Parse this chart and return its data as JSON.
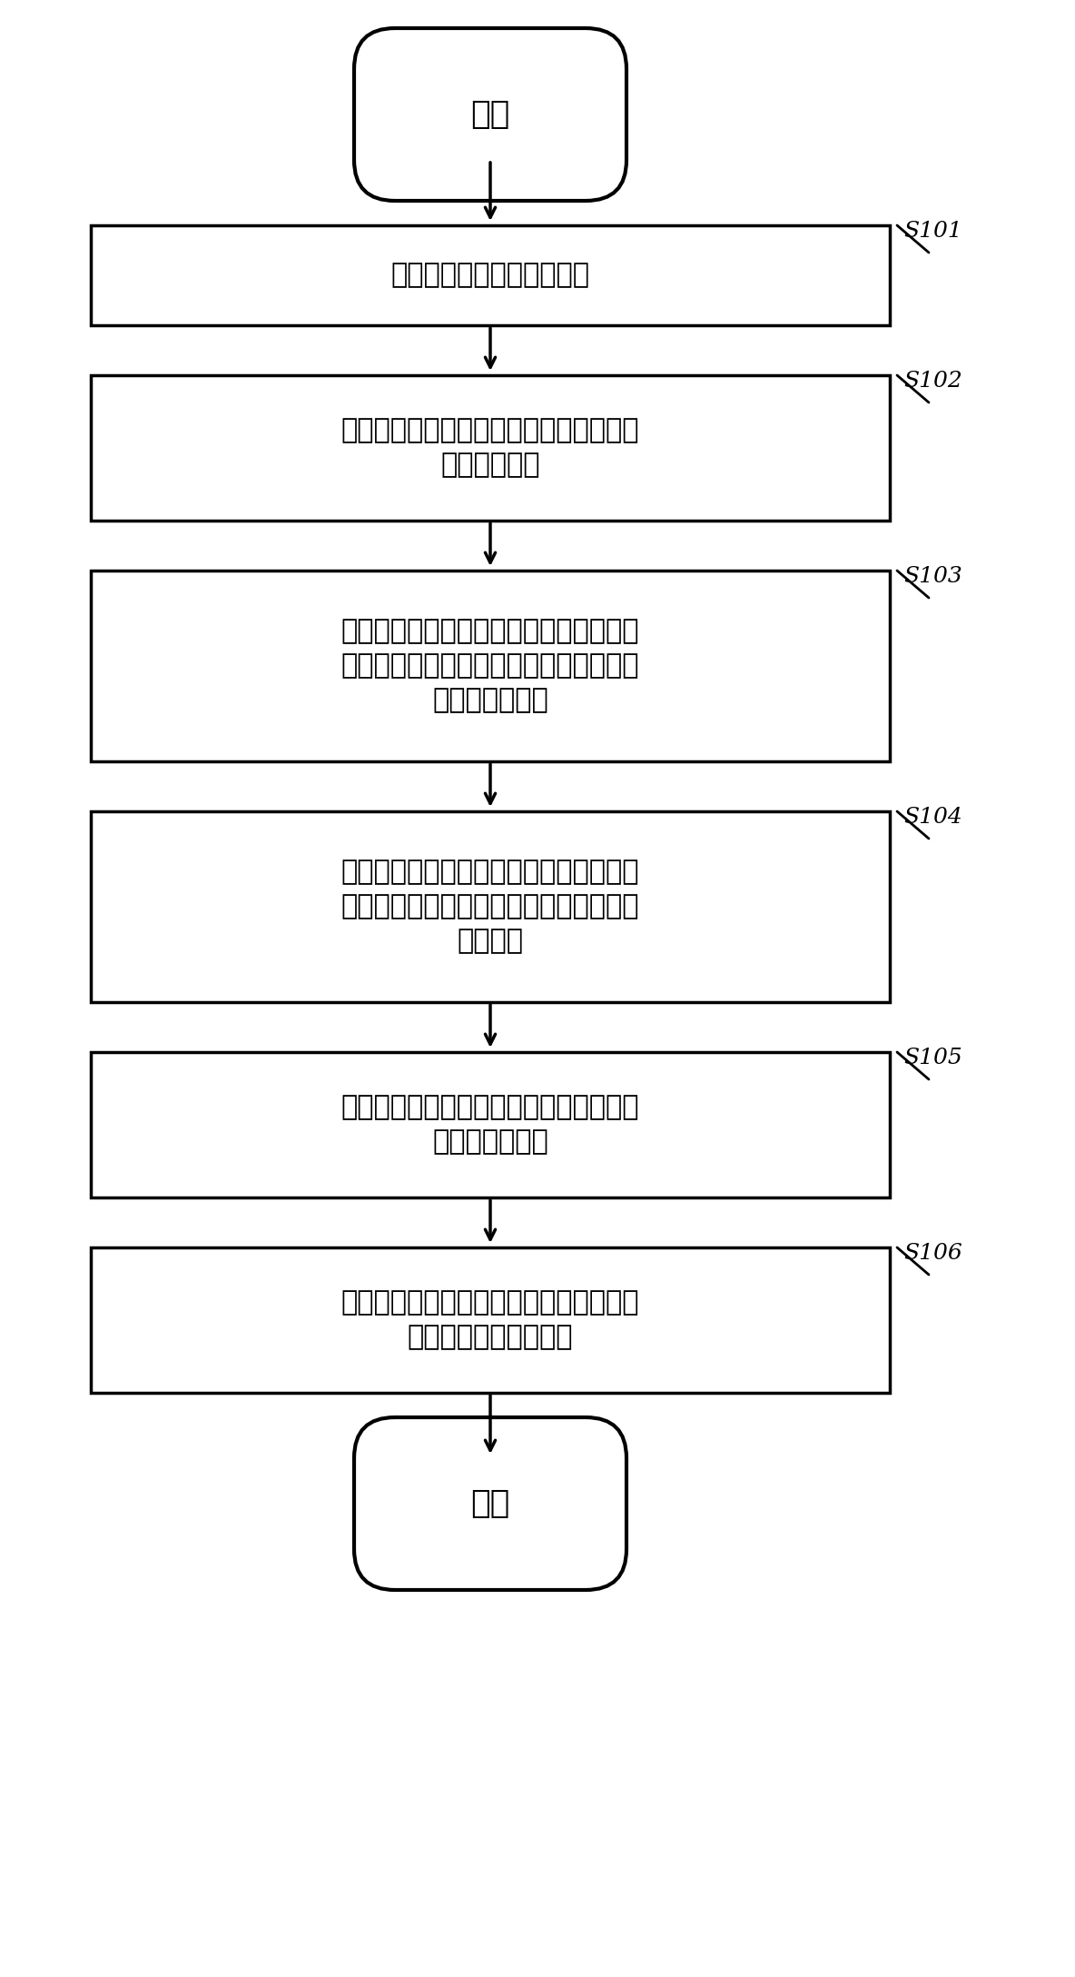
{
  "bg_color": "#ffffff",
  "line_color": "#000000",
  "text_color": "#000000",
  "start_end_text_start": "开始",
  "start_end_text_end": "结束",
  "boxes": [
    {
      "label": "接收来自客户端的数据消息",
      "lines": [
        "接收来自客户端的数据消息"
      ],
      "step": "S101"
    },
    {
      "label": "S102",
      "lines": [
        "通过至少一个处理器解析所述数据消息，",
        "确定目标订单"
      ],
      "step": "S102"
    },
    {
      "label": "S103",
      "lines": [
        "根据用于预估接单时长比例的预估模型，",
        "通过至少一个处理器预估目标订单被接起",
        "的接单时长比例"
      ],
      "step": "S103"
    },
    {
      "label": "S104",
      "lines": [
        "根据目标订单的接单时长比例，通过至少",
        "一个处理器确定对目标订单的配送价格的",
        "增加金额"
      ],
      "step": "S104"
    },
    {
      "label": "S105",
      "lines": [
        "通过至少一个处理器获取针对目标订单增",
        "加后的配送价格"
      ],
      "step": "S105"
    },
    {
      "label": "S106",
      "lines": [
        "通过至少一个处理器根据增加后的配送价",
        "格为目标订单呼叫运力"
      ],
      "step": "S106"
    }
  ],
  "font_size_box": 22,
  "font_size_step": 18,
  "font_size_terminal": 26
}
